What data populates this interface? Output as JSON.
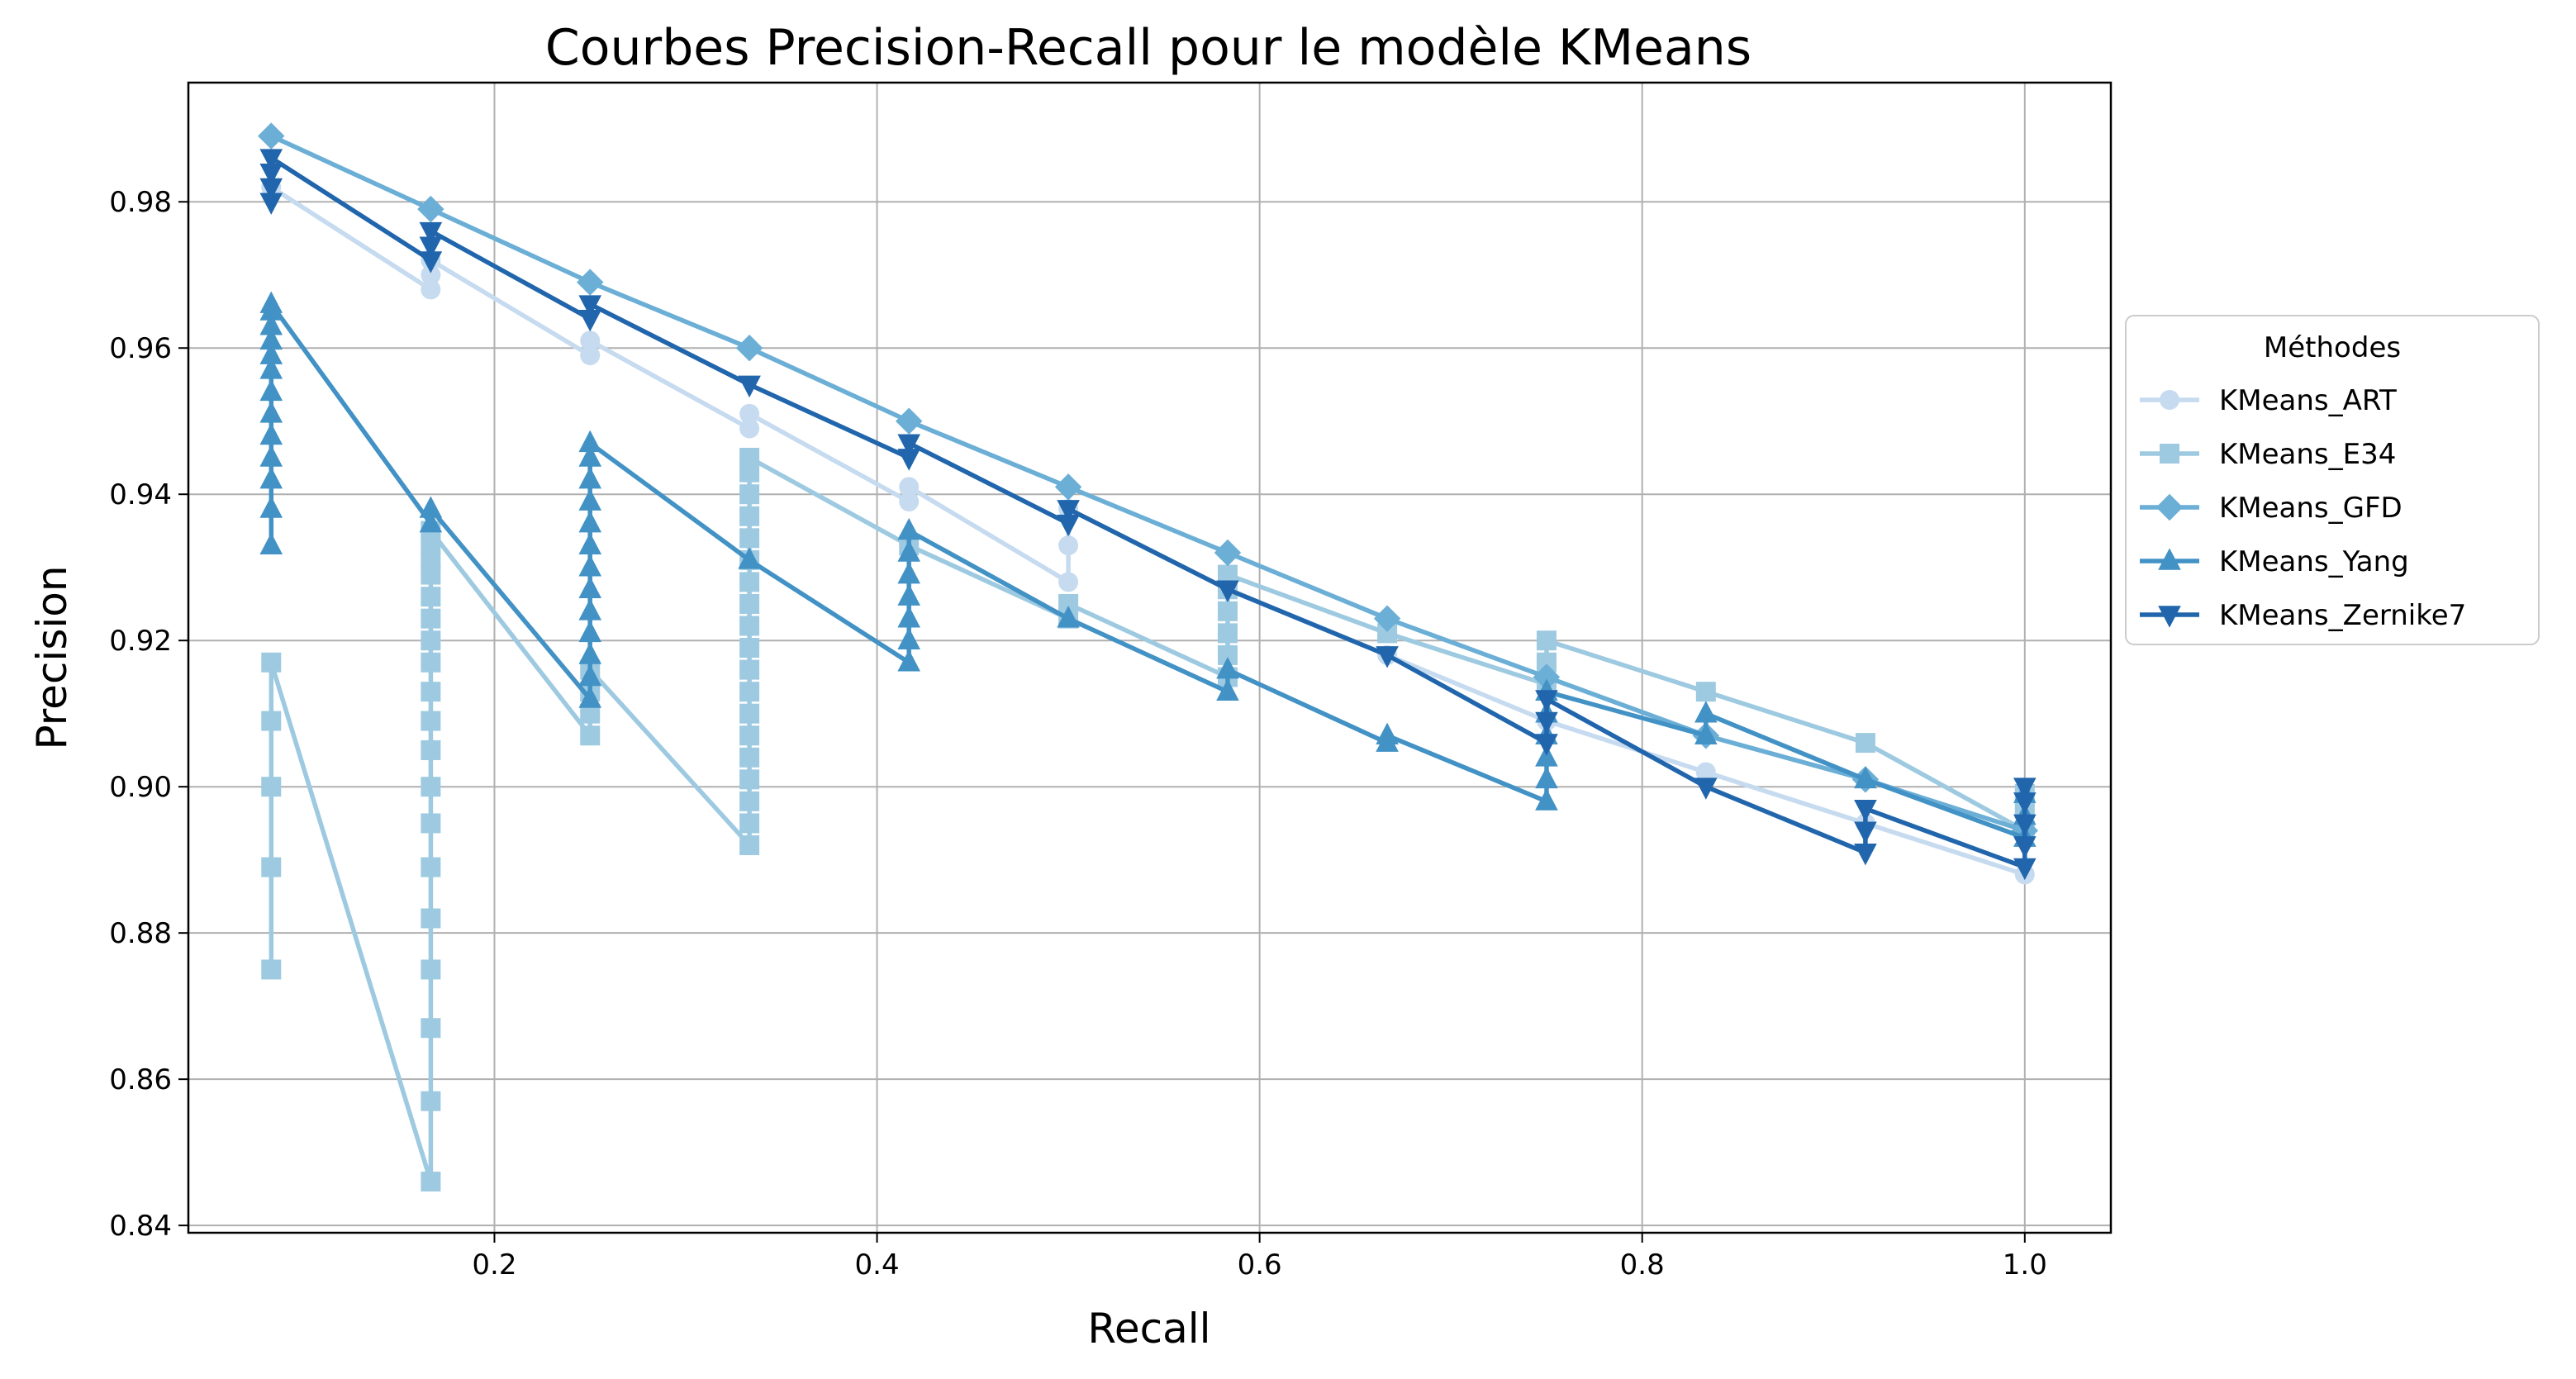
{
  "chart_data": {
    "type": "line",
    "title": "Courbes Precision-Recall pour le modèle KMeans",
    "xlabel": "Recall",
    "ylabel": "Precision",
    "xlim": [
      0.04,
      1.045
    ],
    "ylim": [
      0.839,
      0.9963
    ],
    "xticks": [
      0.2,
      0.4,
      0.6,
      0.8,
      1.0
    ],
    "xtick_labels": [
      "0.2",
      "0.4",
      "0.6",
      "0.8",
      "1.0"
    ],
    "yticks": [
      0.84,
      0.86,
      0.88,
      0.9,
      0.92,
      0.94,
      0.96,
      0.98
    ],
    "ytick_labels": [
      "0.84",
      "0.86",
      "0.88",
      "0.90",
      "0.92",
      "0.94",
      "0.96",
      "0.98"
    ],
    "grid": true,
    "legend": {
      "title": "Méthodes",
      "placement": "outside-right"
    },
    "series": [
      {
        "name": "KMeans_ART",
        "color": "#c6dbef",
        "marker": "circle",
        "points": [
          [
            0.0833,
            0.982
          ],
          [
            0.1667,
            0.968
          ],
          [
            0.1667,
            0.97
          ],
          [
            0.1667,
            0.972
          ],
          [
            0.25,
            0.959
          ],
          [
            0.25,
            0.961
          ],
          [
            0.3333,
            0.949
          ],
          [
            0.3333,
            0.951
          ],
          [
            0.4167,
            0.939
          ],
          [
            0.4167,
            0.941
          ],
          [
            0.5,
            0.928
          ],
          [
            0.5,
            0.933
          ],
          [
            0.5,
            0.938
          ],
          [
            0.5833,
            0.927
          ],
          [
            0.6667,
            0.918
          ],
          [
            0.75,
            0.909
          ],
          [
            0.8333,
            0.902
          ],
          [
            0.9167,
            0.895
          ],
          [
            1.0,
            0.888
          ]
        ]
      },
      {
        "name": "KMeans_E34",
        "color": "#9ecae1",
        "marker": "square",
        "points": [
          [
            0.0833,
            0.875
          ],
          [
            0.0833,
            0.889
          ],
          [
            0.0833,
            0.9
          ],
          [
            0.0833,
            0.909
          ],
          [
            0.0833,
            0.917
          ],
          [
            0.1667,
            0.846
          ],
          [
            0.1667,
            0.857
          ],
          [
            0.1667,
            0.867
          ],
          [
            0.1667,
            0.875
          ],
          [
            0.1667,
            0.882
          ],
          [
            0.1667,
            0.889
          ],
          [
            0.1667,
            0.895
          ],
          [
            0.1667,
            0.9
          ],
          [
            0.1667,
            0.905
          ],
          [
            0.1667,
            0.909
          ],
          [
            0.1667,
            0.913
          ],
          [
            0.1667,
            0.917
          ],
          [
            0.1667,
            0.92
          ],
          [
            0.1667,
            0.923
          ],
          [
            0.1667,
            0.926
          ],
          [
            0.1667,
            0.929
          ],
          [
            0.1667,
            0.931
          ],
          [
            0.1667,
            0.933
          ],
          [
            0.1667,
            0.935
          ],
          [
            0.25,
            0.907
          ],
          [
            0.25,
            0.91
          ],
          [
            0.25,
            0.913
          ],
          [
            0.25,
            0.916
          ],
          [
            0.3333,
            0.892
          ],
          [
            0.3333,
            0.895
          ],
          [
            0.3333,
            0.898
          ],
          [
            0.3333,
            0.901
          ],
          [
            0.3333,
            0.904
          ],
          [
            0.3333,
            0.907
          ],
          [
            0.3333,
            0.91
          ],
          [
            0.3333,
            0.913
          ],
          [
            0.3333,
            0.916
          ],
          [
            0.3333,
            0.919
          ],
          [
            0.3333,
            0.922
          ],
          [
            0.3333,
            0.925
          ],
          [
            0.3333,
            0.928
          ],
          [
            0.3333,
            0.931
          ],
          [
            0.3333,
            0.934
          ],
          [
            0.3333,
            0.937
          ],
          [
            0.3333,
            0.94
          ],
          [
            0.3333,
            0.943
          ],
          [
            0.3333,
            0.945
          ],
          [
            0.4167,
            0.933
          ],
          [
            0.5,
            0.923
          ],
          [
            0.5,
            0.925
          ],
          [
            0.5833,
            0.915
          ],
          [
            0.5833,
            0.918
          ],
          [
            0.5833,
            0.921
          ],
          [
            0.5833,
            0.924
          ],
          [
            0.5833,
            0.927
          ],
          [
            0.5833,
            0.929
          ],
          [
            0.6667,
            0.921
          ],
          [
            0.75,
            0.914
          ],
          [
            0.75,
            0.917
          ],
          [
            0.75,
            0.92
          ],
          [
            0.8333,
            0.913
          ],
          [
            0.9167,
            0.906
          ],
          [
            1.0,
            0.894
          ],
          [
            1.0,
            0.897
          ],
          [
            1.0,
            0.899
          ]
        ]
      },
      {
        "name": "KMeans_GFD",
        "color": "#6baed6",
        "marker": "diamond",
        "points": [
          [
            0.0833,
            0.989
          ],
          [
            0.1667,
            0.979
          ],
          [
            0.25,
            0.969
          ],
          [
            0.3333,
            0.96
          ],
          [
            0.4167,
            0.95
          ],
          [
            0.5,
            0.941
          ],
          [
            0.5833,
            0.932
          ],
          [
            0.6667,
            0.923
          ],
          [
            0.75,
            0.915
          ],
          [
            0.8333,
            0.907
          ],
          [
            0.9167,
            0.901
          ],
          [
            1.0,
            0.894
          ]
        ]
      },
      {
        "name": "KMeans_Yang",
        "color": "#4292c6",
        "marker": "triangle-up",
        "points": [
          [
            0.0833,
            0.933
          ],
          [
            0.0833,
            0.938
          ],
          [
            0.0833,
            0.942
          ],
          [
            0.0833,
            0.945
          ],
          [
            0.0833,
            0.948
          ],
          [
            0.0833,
            0.951
          ],
          [
            0.0833,
            0.954
          ],
          [
            0.0833,
            0.957
          ],
          [
            0.0833,
            0.959
          ],
          [
            0.0833,
            0.961
          ],
          [
            0.0833,
            0.963
          ],
          [
            0.0833,
            0.965
          ],
          [
            0.0833,
            0.966
          ],
          [
            0.1667,
            0.936
          ],
          [
            0.1667,
            0.938
          ],
          [
            0.25,
            0.912
          ],
          [
            0.25,
            0.915
          ],
          [
            0.25,
            0.918
          ],
          [
            0.25,
            0.921
          ],
          [
            0.25,
            0.924
          ],
          [
            0.25,
            0.927
          ],
          [
            0.25,
            0.93
          ],
          [
            0.25,
            0.933
          ],
          [
            0.25,
            0.936
          ],
          [
            0.25,
            0.939
          ],
          [
            0.25,
            0.942
          ],
          [
            0.25,
            0.945
          ],
          [
            0.25,
            0.947
          ],
          [
            0.3333,
            0.931
          ],
          [
            0.4167,
            0.917
          ],
          [
            0.4167,
            0.92
          ],
          [
            0.4167,
            0.923
          ],
          [
            0.4167,
            0.926
          ],
          [
            0.4167,
            0.929
          ],
          [
            0.4167,
            0.932
          ],
          [
            0.4167,
            0.935
          ],
          [
            0.5,
            0.923
          ],
          [
            0.5833,
            0.913
          ],
          [
            0.5833,
            0.916
          ],
          [
            0.6667,
            0.906
          ],
          [
            0.6667,
            0.907
          ],
          [
            0.75,
            0.898
          ],
          [
            0.75,
            0.901
          ],
          [
            0.75,
            0.904
          ],
          [
            0.75,
            0.907
          ],
          [
            0.75,
            0.91
          ],
          [
            0.75,
            0.913
          ],
          [
            0.8333,
            0.907
          ],
          [
            0.8333,
            0.91
          ],
          [
            0.9167,
            0.901
          ],
          [
            1.0,
            0.893
          ],
          [
            1.0,
            0.896
          ],
          [
            1.0,
            0.899
          ]
        ]
      },
      {
        "name": "KMeans_Zernike7",
        "color": "#2166ac",
        "marker": "triangle-down",
        "points": [
          [
            0.0833,
            0.98
          ],
          [
            0.0833,
            0.982
          ],
          [
            0.0833,
            0.984
          ],
          [
            0.0833,
            0.986
          ],
          [
            0.1667,
            0.972
          ],
          [
            0.1667,
            0.974
          ],
          [
            0.1667,
            0.976
          ],
          [
            0.25,
            0.964
          ],
          [
            0.25,
            0.966
          ],
          [
            0.3333,
            0.955
          ],
          [
            0.4167,
            0.945
          ],
          [
            0.4167,
            0.947
          ],
          [
            0.5,
            0.936
          ],
          [
            0.5,
            0.938
          ],
          [
            0.5833,
            0.927
          ],
          [
            0.6667,
            0.918
          ],
          [
            0.75,
            0.906
          ],
          [
            0.75,
            0.909
          ],
          [
            0.75,
            0.912
          ],
          [
            0.8333,
            0.9
          ],
          [
            0.9167,
            0.891
          ],
          [
            0.9167,
            0.894
          ],
          [
            0.9167,
            0.897
          ],
          [
            1.0,
            0.889
          ],
          [
            1.0,
            0.892
          ],
          [
            1.0,
            0.895
          ],
          [
            1.0,
            0.898
          ],
          [
            1.0,
            0.9
          ]
        ]
      }
    ]
  }
}
